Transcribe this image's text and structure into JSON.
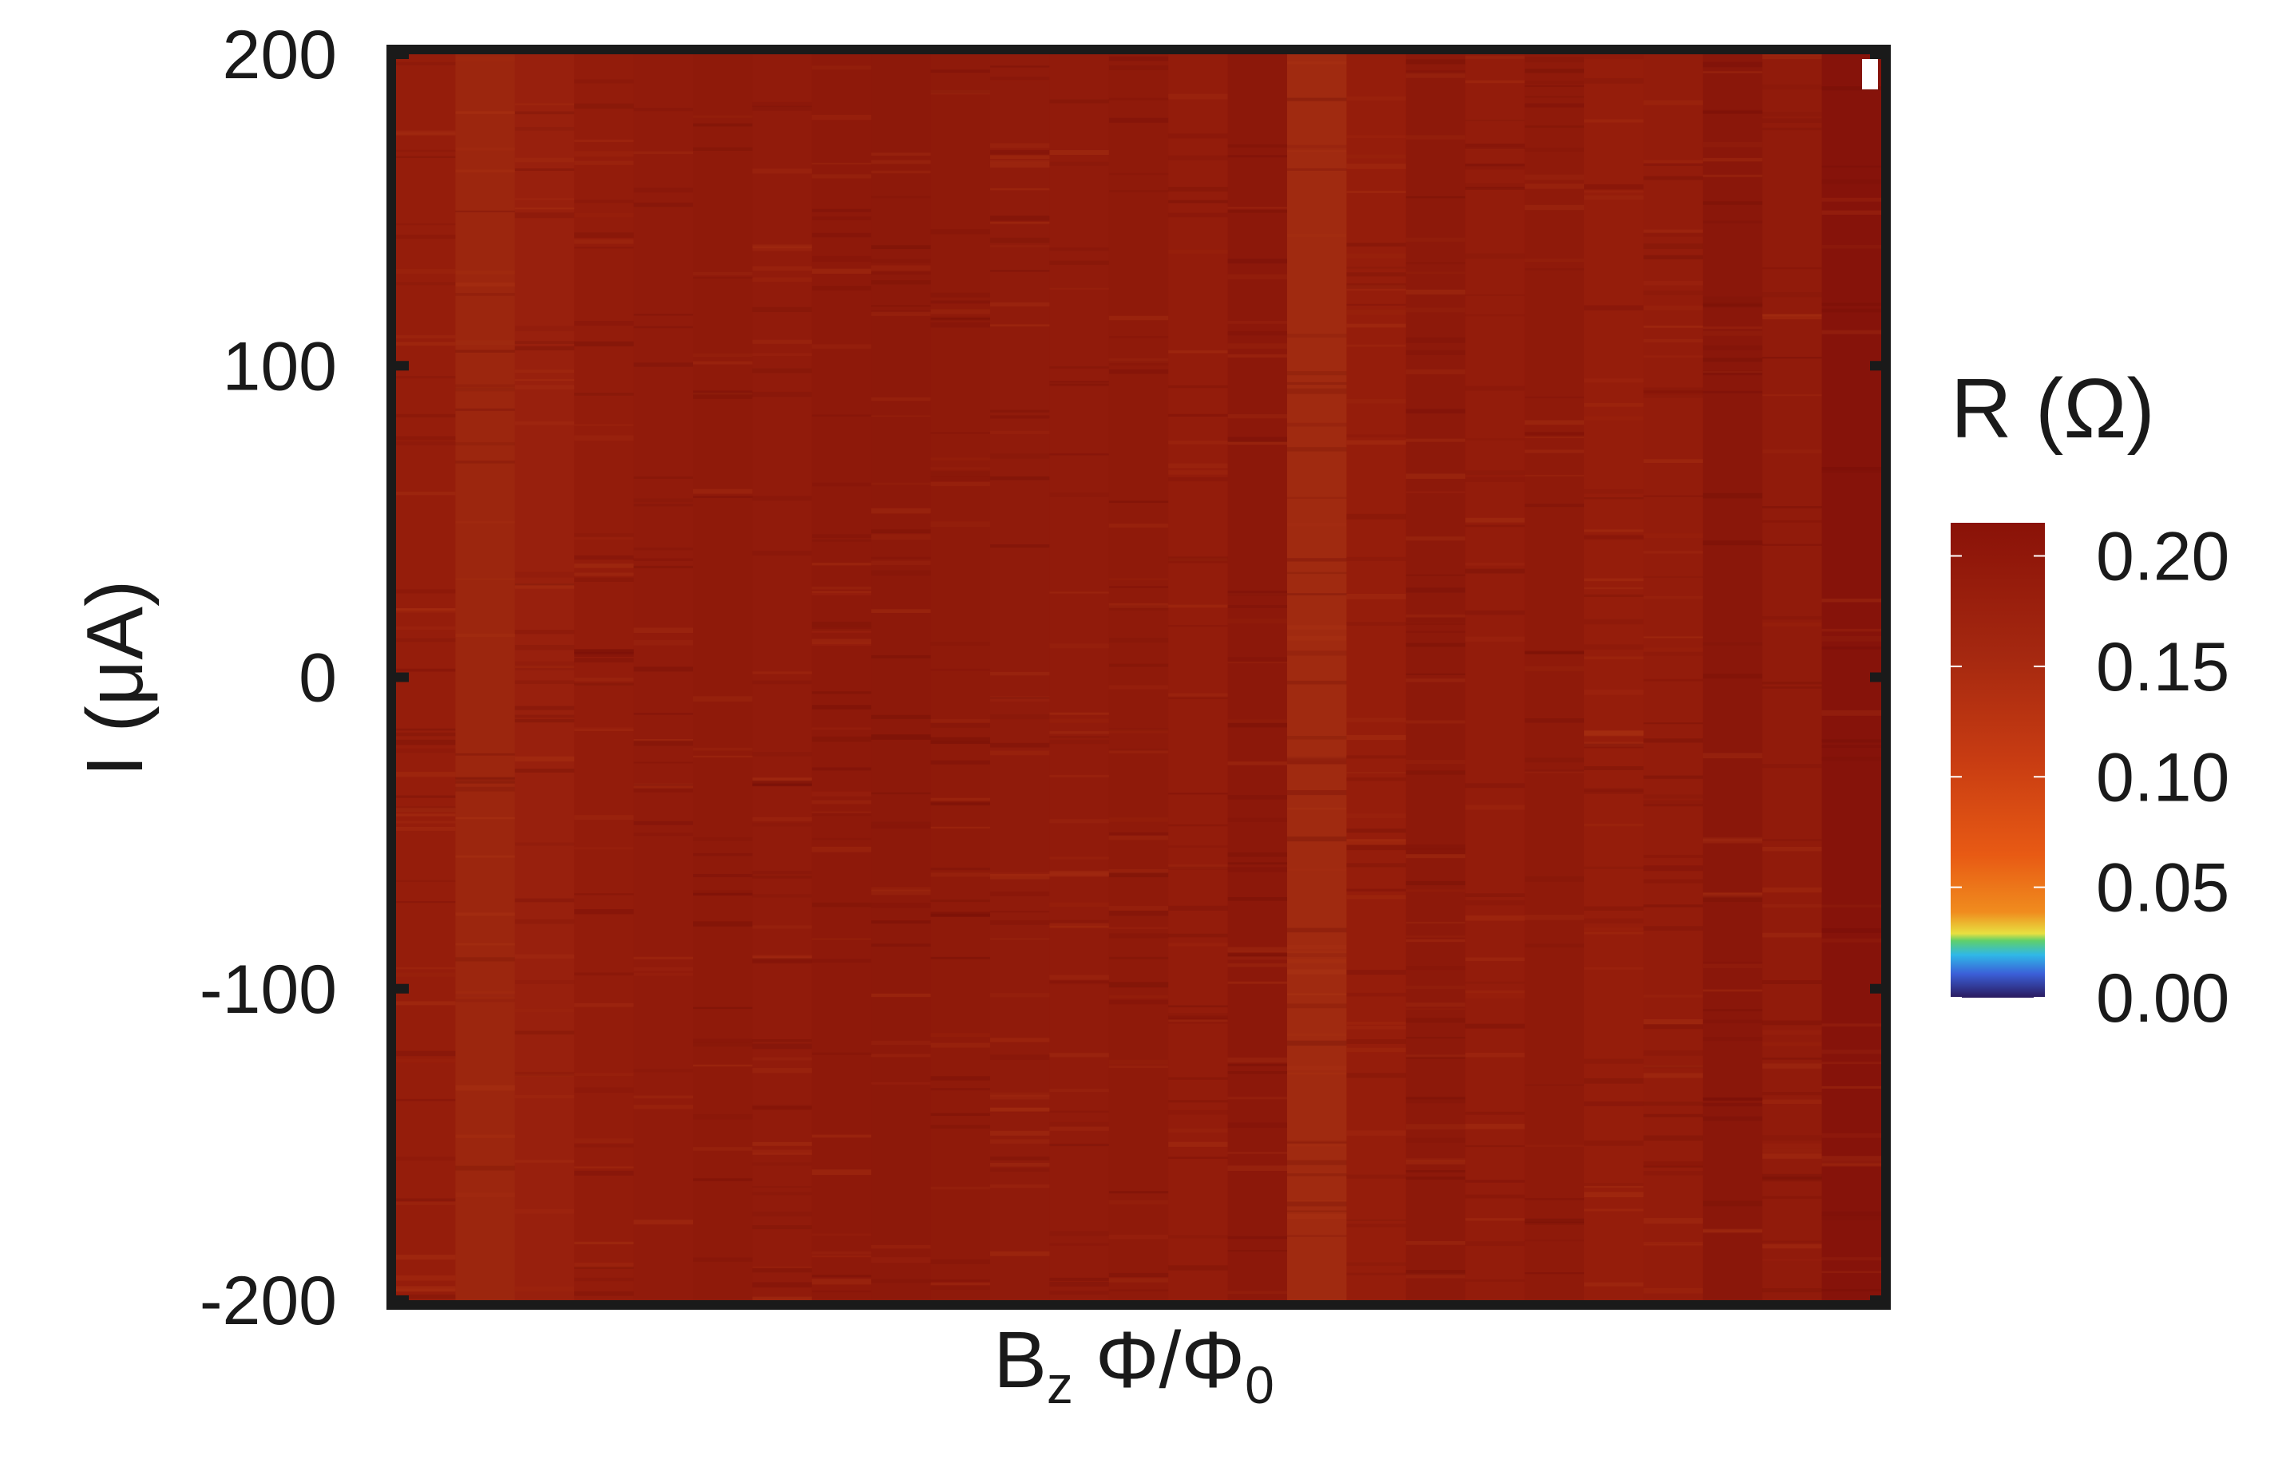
{
  "chart_data": {
    "type": "heatmap",
    "ylabel": "I (μA)",
    "xlabel": {
      "main": "B",
      "sub": "z",
      "rest": " Φ/Φ",
      "sub2": "0"
    },
    "yticks": [
      "200",
      "100",
      "0",
      "-100",
      "-200"
    ],
    "ytick_values": [
      200,
      100,
      0,
      -100,
      -200
    ],
    "ylim": [
      -200,
      200
    ],
    "xlim": [
      0,
      1
    ],
    "colorbar": {
      "title": "R (Ω)",
      "ticks": [
        "0.20",
        "0.15",
        "0.10",
        "0.05",
        "0.00"
      ],
      "tick_values": [
        0.2,
        0.15,
        0.1,
        0.05,
        0.0
      ],
      "range": [
        0.0,
        0.215
      ],
      "stops": [
        "#2a1a5e",
        "#3b5fd8",
        "#2fb8e8",
        "#5fd06a",
        "#e8e040",
        "#f08c1e",
        "#e85a14",
        "#c83c12",
        "#a52810",
        "#8a1208"
      ]
    },
    "columns": [
      {
        "R": 0.176,
        "color": "#951d0b"
      },
      {
        "R": 0.166,
        "color": "#9c260e"
      },
      {
        "R": 0.172,
        "color": "#98200d"
      },
      {
        "R": 0.18,
        "color": "#931c0b"
      },
      {
        "R": 0.182,
        "color": "#911b0b"
      },
      {
        "R": 0.184,
        "color": "#8f1a0a"
      },
      {
        "R": 0.182,
        "color": "#911b0b"
      },
      {
        "R": 0.185,
        "color": "#8e190a"
      },
      {
        "R": 0.186,
        "color": "#8d190a"
      },
      {
        "R": 0.184,
        "color": "#8f1a0a"
      },
      {
        "R": 0.183,
        "color": "#901b0b"
      },
      {
        "R": 0.182,
        "color": "#911b0b"
      },
      {
        "R": 0.184,
        "color": "#8f1a0a"
      },
      {
        "R": 0.18,
        "color": "#931c0b"
      },
      {
        "R": 0.187,
        "color": "#8c180a"
      },
      {
        "R": 0.162,
        "color": "#a02a10"
      },
      {
        "R": 0.176,
        "color": "#951d0b"
      },
      {
        "R": 0.186,
        "color": "#8d190a"
      },
      {
        "R": 0.18,
        "color": "#931c0b"
      },
      {
        "R": 0.184,
        "color": "#8f1a0a"
      },
      {
        "R": 0.176,
        "color": "#951d0b"
      },
      {
        "R": 0.18,
        "color": "#931c0b"
      },
      {
        "R": 0.189,
        "color": "#8a170a"
      },
      {
        "R": 0.182,
        "color": "#911b0b"
      },
      {
        "R": 0.193,
        "color": "#86130a"
      }
    ]
  }
}
